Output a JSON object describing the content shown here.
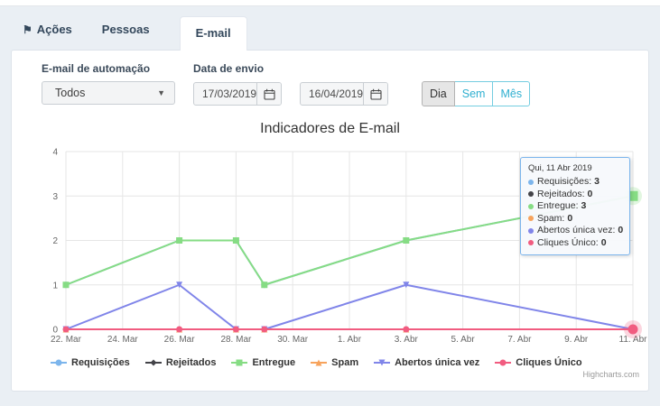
{
  "colors": {
    "accent_cyan": "#2eafd0",
    "page_background": "#eaeff4",
    "panel_border": "#dde3ea",
    "grid_line": "#e6e6e6",
    "axis_line": "#ccd6eb"
  },
  "tabs": [
    {
      "label": "Ações",
      "icon": "flag-icon",
      "active": false
    },
    {
      "label": "Pessoas",
      "active": false
    },
    {
      "label": "E-mail",
      "active": true
    }
  ],
  "filters": {
    "automation": {
      "label": "E-mail de automação",
      "value": "Todos"
    },
    "send_date": {
      "label": "Data de envio",
      "from": "17/03/2019",
      "to": "16/04/2019"
    },
    "period_buttons": [
      {
        "label": "Dia",
        "selected": true
      },
      {
        "label": "Sem",
        "selected": false
      },
      {
        "label": "Mês",
        "selected": false
      }
    ]
  },
  "chart_data": {
    "type": "line",
    "title": "Indicadores de E-mail",
    "xlabel": "",
    "ylabel": "",
    "ylim": [
      0,
      4
    ],
    "yticks": [
      0,
      1,
      2,
      3,
      4
    ],
    "grid": true,
    "legend_position": "bottom-left",
    "x_tick_days": [
      0,
      2,
      4,
      6,
      8,
      10,
      12,
      14,
      16,
      18,
      20
    ],
    "x_tick_labels": [
      "22. Mar",
      "24. Mar",
      "26. Mar",
      "28. Mar",
      "30. Mar",
      "1. Abr",
      "3. Abr",
      "5. Abr",
      "7. Abr",
      "9. Abr",
      "11. Abr"
    ],
    "point_days": [
      0,
      4,
      6,
      7,
      12,
      20
    ],
    "point_dates": [
      "22 Mar",
      "26 Mar",
      "28 Mar",
      "29 Mar",
      "3 Abr",
      "11 Abr"
    ],
    "series": [
      {
        "name": "Requisições",
        "color": "#7cb5ec",
        "marker": "circle",
        "values": [
          1,
          2,
          2,
          1,
          2,
          3
        ]
      },
      {
        "name": "Rejeitados",
        "color": "#434348",
        "marker": "diamond",
        "values": [
          0,
          0,
          0,
          0,
          0,
          0
        ]
      },
      {
        "name": "Entregue",
        "color": "#86dc84",
        "marker": "square",
        "values": [
          1,
          2,
          2,
          1,
          2,
          3
        ]
      },
      {
        "name": "Spam",
        "color": "#f7a35c",
        "marker": "triangle",
        "values": [
          0,
          0,
          0,
          0,
          0,
          0
        ]
      },
      {
        "name": "Abertos única vez",
        "color": "#8085e9",
        "marker": "triangle-down",
        "values": [
          0,
          1,
          0,
          0,
          1,
          0
        ]
      },
      {
        "name": "Cliques Único",
        "color": "#f15c80",
        "marker": "circle",
        "values": [
          0,
          0,
          0,
          0,
          0,
          0
        ]
      }
    ],
    "hover": {
      "index": 5,
      "series": [
        "Entregue",
        "Cliques Único"
      ]
    },
    "credit": "Highcharts.com"
  },
  "tooltip": {
    "header": "Qui, 11 Abr 2019",
    "rows": [
      {
        "name": "Requisições",
        "value": "3",
        "color": "#7cb5ec"
      },
      {
        "name": "Rejeitados",
        "value": "0",
        "color": "#434348"
      },
      {
        "name": "Entregue",
        "value": "3",
        "color": "#86dc84"
      },
      {
        "name": "Spam",
        "value": "0",
        "color": "#f7a35c"
      },
      {
        "name": "Abertos única vez",
        "value": "0",
        "color": "#8085e9"
      },
      {
        "name": "Cliques Único",
        "value": "0",
        "color": "#f15c80"
      }
    ]
  }
}
